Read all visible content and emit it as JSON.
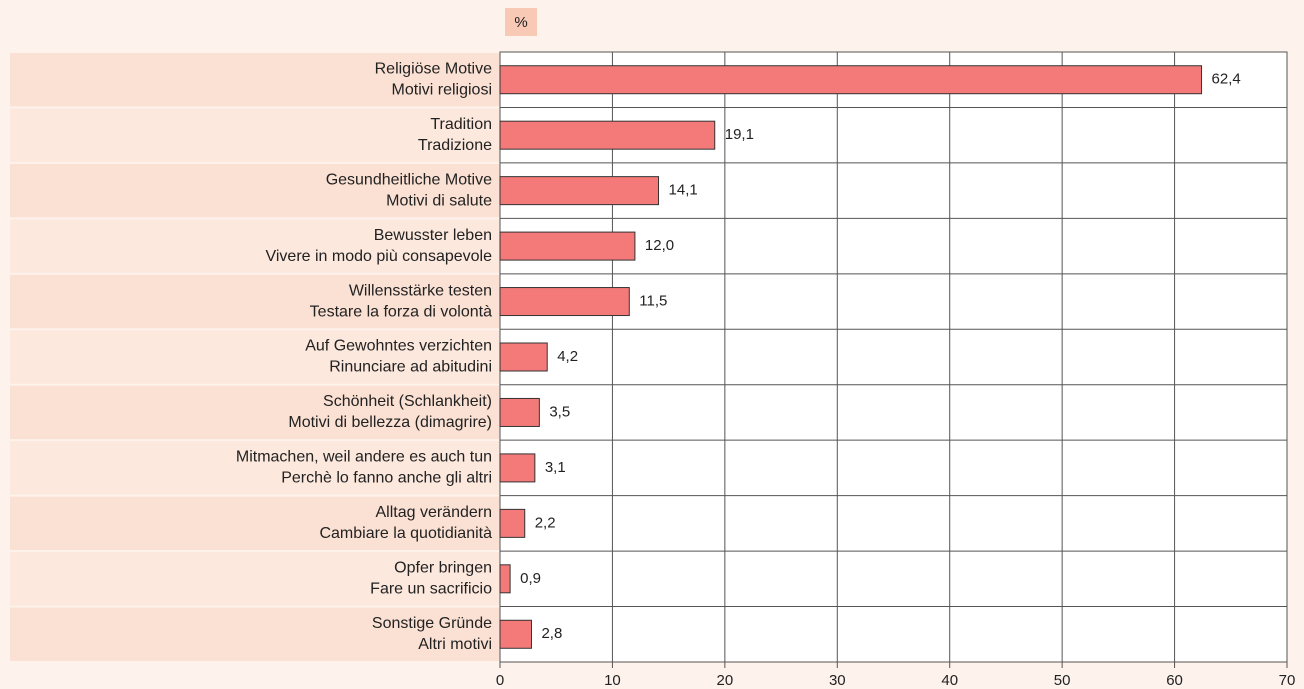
{
  "chart_data": {
    "type": "bar",
    "orientation": "horizontal",
    "unit_label": "%",
    "categories": [
      [
        "Religiöse Motive",
        "Motivi religiosi"
      ],
      [
        "Tradition",
        "Tradizione"
      ],
      [
        "Gesundheitliche Motive",
        "Motivi di salute"
      ],
      [
        "Bewusster leben",
        "Vivere in modo più consapevole"
      ],
      [
        "Willensstärke testen",
        "Testare la forza di volontà"
      ],
      [
        "Auf Gewohntes verzichten",
        "Rinunciare ad abitudini"
      ],
      [
        "Schönheit (Schlankheit)",
        "Motivi di bellezza (dimagrire)"
      ],
      [
        "Mitmachen, weil andere es auch tun",
        "Perchè lo fanno anche gli altri"
      ],
      [
        "Alltag verändern",
        "Cambiare la quotidianità"
      ],
      [
        "Opfer bringen",
        "Fare un sacrificio"
      ],
      [
        "Sonstige Gründe",
        "Altri motivi"
      ]
    ],
    "values": [
      62.4,
      19.1,
      14.1,
      12.0,
      11.5,
      4.2,
      3.5,
      3.1,
      2.2,
      0.9,
      2.8
    ],
    "value_labels": [
      "62,4",
      "19,1",
      "14,1",
      "12,0",
      "11,5",
      "4,2",
      "3,5",
      "3,1",
      "2,2",
      "0,9",
      "2,8"
    ],
    "color": "#f47a7a",
    "xlim": [
      0,
      70
    ],
    "xticks": [
      0,
      10,
      20,
      30,
      40,
      50,
      60,
      70
    ],
    "grid": true
  }
}
